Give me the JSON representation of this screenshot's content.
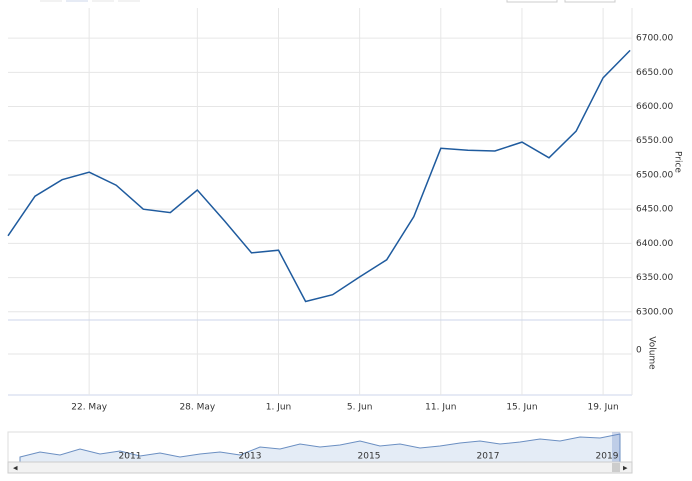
{
  "chart_data": {
    "type": "line",
    "categories": [
      null,
      null,
      null,
      "22. May",
      null,
      null,
      null,
      "28. May",
      null,
      null,
      "1. Jun",
      null,
      null,
      "5. Jun",
      null,
      null,
      "11. Jun",
      null,
      null,
      "15. Jun",
      null,
      null,
      "19. Jun",
      null
    ],
    "series": [
      {
        "name": "Price",
        "color": "#1f5b9e",
        "values": [
          6411,
          6469,
          6493,
          6504,
          6485,
          6450,
          6445,
          6478,
          6433,
          6386,
          6390,
          6315,
          6325,
          6351,
          6376,
          6439,
          6539,
          6536,
          6535,
          6548,
          6525,
          6564,
          6642,
          6682
        ]
      }
    ],
    "y_title": "Price",
    "ylim": [
      6288,
      6744
    ],
    "yticks": [
      {
        "value": 6300,
        "label": "6300.00"
      },
      {
        "value": 6350,
        "label": "6350.00"
      },
      {
        "value": 6400,
        "label": "6400.00"
      },
      {
        "value": 6450,
        "label": "6450.00"
      },
      {
        "value": 6500,
        "label": "6500.00"
      },
      {
        "value": 6550,
        "label": "6550.00"
      },
      {
        "value": 6600,
        "label": "6600.00"
      },
      {
        "value": 6650,
        "label": "6650.00"
      },
      {
        "value": 6700,
        "label": "6700.00"
      }
    ],
    "volume_title": "Volume",
    "volume_ticks": [
      0
    ],
    "navigator_labels": [
      "2011",
      "2013",
      "2015",
      "2017",
      "2019"
    ],
    "grid": true
  }
}
